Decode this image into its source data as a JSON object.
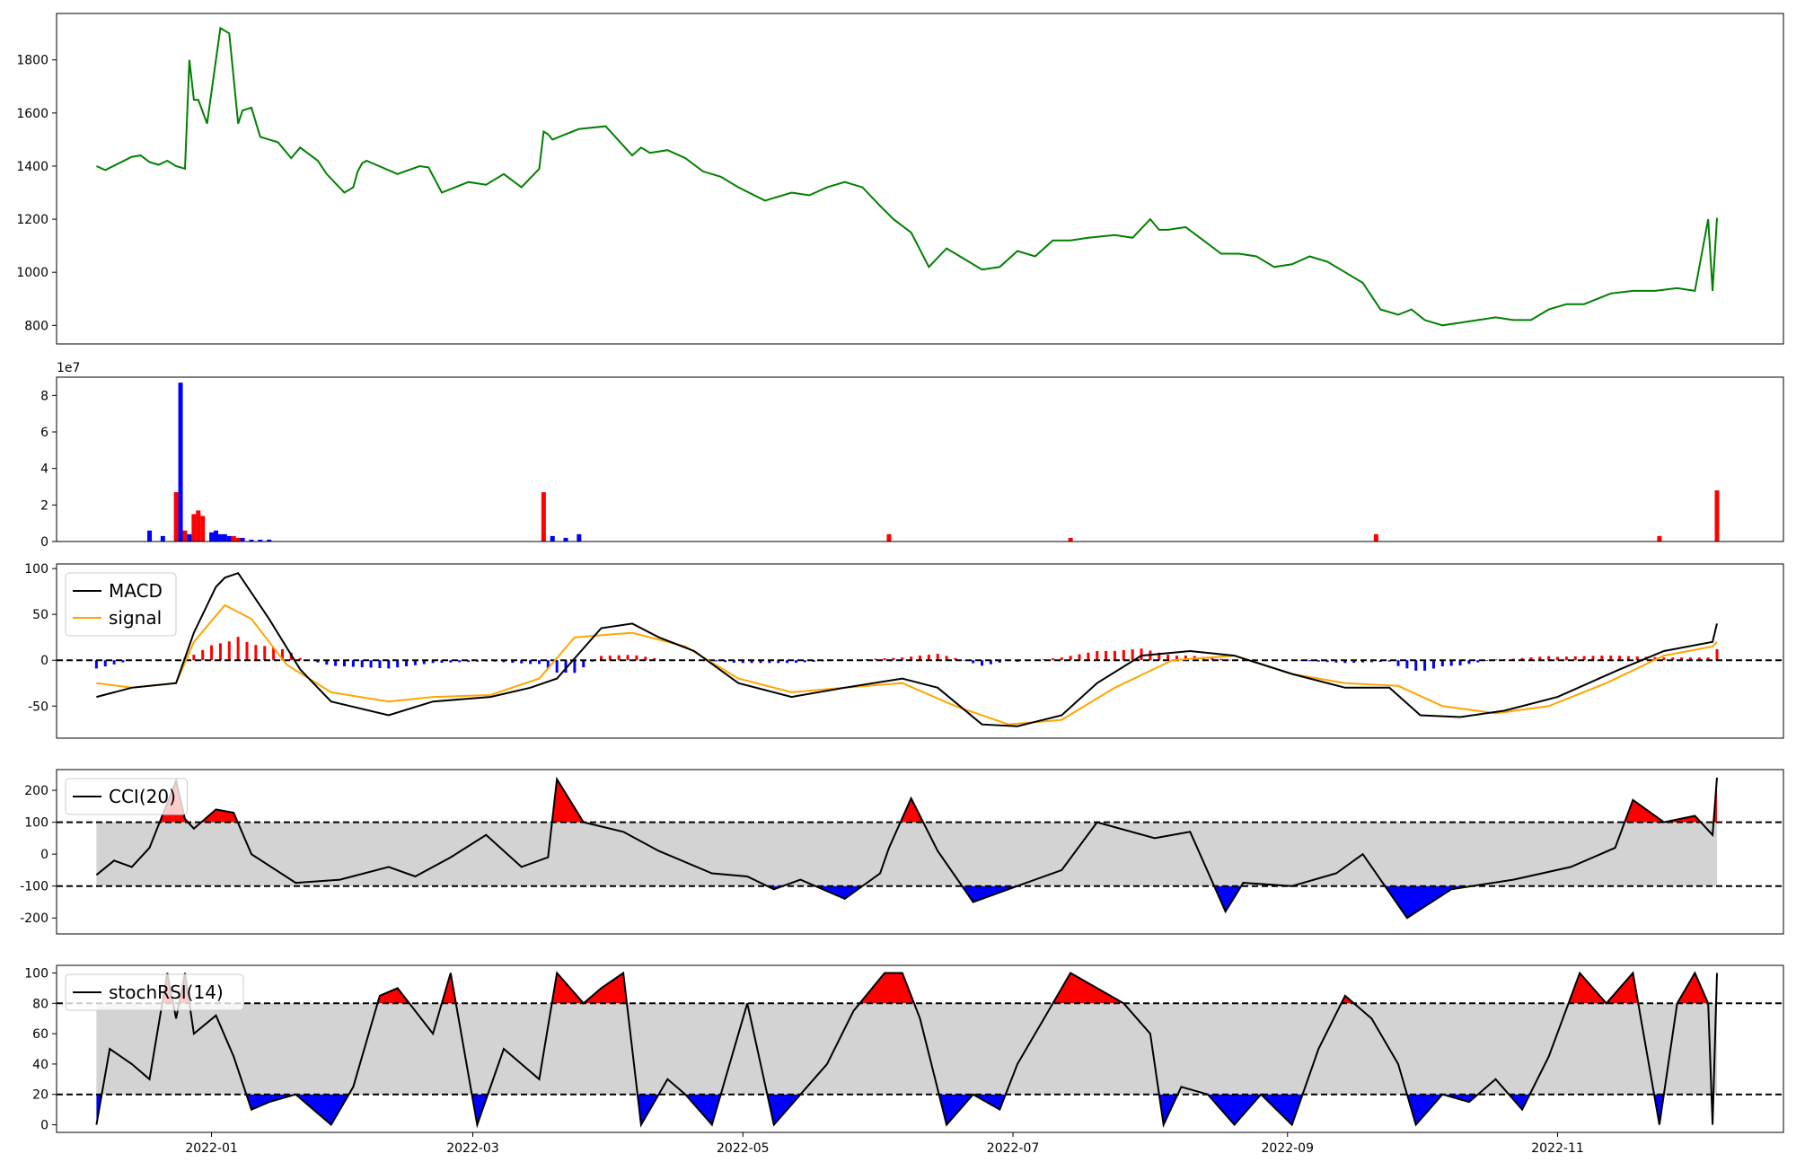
{
  "chart_data": [
    {
      "id": "price",
      "type": "line",
      "color": "#008000",
      "ylim": [
        730,
        1975
      ],
      "yticks": [
        800,
        1000,
        1200,
        1400,
        1600,
        1800
      ],
      "x": [
        "2021-12-06",
        "2021-12-08",
        "2021-12-14",
        "2021-12-16",
        "2021-12-18",
        "2021-12-20",
        "2021-12-22",
        "2021-12-24",
        "2021-12-26",
        "2021-12-27",
        "2021-12-28",
        "2021-12-29",
        "2021-12-31",
        "2022-01-03",
        "2022-01-05",
        "2022-01-07",
        "2022-01-08",
        "2022-01-10",
        "2022-01-12",
        "2022-01-14",
        "2022-01-16",
        "2022-01-19",
        "2022-01-21",
        "2022-01-25",
        "2022-01-27",
        "2022-01-31",
        "2022-02-02",
        "2022-02-03",
        "2022-02-04",
        "2022-02-05",
        "2022-02-12",
        "2022-02-17",
        "2022-02-19",
        "2022-02-22",
        "2022-02-25",
        "2022-02-28",
        "2022-03-04",
        "2022-03-08",
        "2022-03-12",
        "2022-03-16",
        "2022-03-17",
        "2022-03-18",
        "2022-03-19",
        "2022-03-25",
        "2022-03-31",
        "2022-04-06",
        "2022-04-08",
        "2022-04-10",
        "2022-04-14",
        "2022-04-18",
        "2022-04-22",
        "2022-04-26",
        "2022-04-30",
        "2022-05-06",
        "2022-05-12",
        "2022-05-16",
        "2022-05-20",
        "2022-05-24",
        "2022-05-28",
        "2022-06-01",
        "2022-06-04",
        "2022-06-08",
        "2022-06-12",
        "2022-06-16",
        "2022-06-20",
        "2022-06-24",
        "2022-06-28",
        "2022-07-02",
        "2022-07-06",
        "2022-07-10",
        "2022-07-14",
        "2022-07-18",
        "2022-07-24",
        "2022-07-28",
        "2022-08-01",
        "2022-08-03",
        "2022-08-05",
        "2022-08-09",
        "2022-08-13",
        "2022-08-17",
        "2022-08-21",
        "2022-08-25",
        "2022-08-29",
        "2022-09-02",
        "2022-09-06",
        "2022-09-10",
        "2022-09-14",
        "2022-09-18",
        "2022-09-22",
        "2022-09-26",
        "2022-09-29",
        "2022-10-02",
        "2022-10-06",
        "2022-10-10",
        "2022-10-14",
        "2022-10-18",
        "2022-10-22",
        "2022-10-26",
        "2022-10-30",
        "2022-11-03",
        "2022-11-07",
        "2022-11-13",
        "2022-11-18",
        "2022-11-23",
        "2022-11-28",
        "2022-12-02",
        "2022-12-05",
        "2022-12-06",
        "2022-12-07"
      ],
      "y": [
        1400,
        1385,
        1435,
        1440,
        1415,
        1405,
        1420,
        1400,
        1390,
        1800,
        1650,
        1650,
        1560,
        1920,
        1900,
        1560,
        1610,
        1620,
        1510,
        1500,
        1490,
        1430,
        1470,
        1420,
        1370,
        1300,
        1320,
        1380,
        1410,
        1420,
        1370,
        1400,
        1395,
        1300,
        1320,
        1340,
        1330,
        1370,
        1320,
        1390,
        1530,
        1520,
        1500,
        1540,
        1550,
        1440,
        1470,
        1450,
        1460,
        1430,
        1380,
        1360,
        1320,
        1270,
        1300,
        1290,
        1320,
        1340,
        1320,
        1250,
        1200,
        1150,
        1020,
        1090,
        1050,
        1010,
        1020,
        1080,
        1060,
        1120,
        1120,
        1130,
        1140,
        1130,
        1200,
        1160,
        1160,
        1170,
        1120,
        1070,
        1070,
        1060,
        1020,
        1030,
        1060,
        1040,
        1000,
        960,
        860,
        840,
        860,
        820,
        800,
        810,
        820,
        830,
        820,
        820,
        860,
        880,
        880,
        920,
        930,
        930,
        940,
        930,
        1200,
        930,
        1205
      ],
      "xdomain": [
        "2021-11-27",
        "2022-12-22"
      ]
    },
    {
      "id": "volume",
      "type": "bar",
      "offset_text": "1e7",
      "ylim": [
        0,
        9
      ],
      "yticks": [
        0,
        2,
        4,
        6,
        8
      ],
      "x": [
        "2021-12-18",
        "2021-12-21",
        "2021-12-24",
        "2021-12-25",
        "2021-12-26",
        "2021-12-27",
        "2021-12-28",
        "2021-12-29",
        "2021-12-30",
        "2022-01-01",
        "2022-01-02",
        "2022-01-03",
        "2022-01-04",
        "2022-01-05",
        "2022-01-06",
        "2022-01-07",
        "2022-01-08",
        "2022-01-10",
        "2022-01-12",
        "2022-01-14",
        "2022-03-17",
        "2022-03-19",
        "2022-03-22",
        "2022-03-25",
        "2022-06-03",
        "2022-07-14",
        "2022-09-21",
        "2022-11-24",
        "2022-12-07"
      ],
      "values": [
        0.6,
        0.3,
        2.7,
        8.7,
        0.6,
        0.4,
        1.5,
        1.7,
        1.4,
        0.5,
        0.6,
        0.4,
        0.4,
        0.3,
        0.3,
        0.2,
        0.2,
        0.1,
        0.1,
        0.1,
        2.7,
        0.3,
        0.2,
        0.4,
        0.4,
        0.2,
        0.4,
        0.3,
        2.8
      ],
      "colors": [
        "b",
        "b",
        "r",
        "b",
        "r",
        "b",
        "r",
        "r",
        "r",
        "b",
        "b",
        "b",
        "b",
        "b",
        "r",
        "r",
        "b",
        "b",
        "b",
        "b",
        "r",
        "b",
        "b",
        "b",
        "r",
        "r",
        "r",
        "r",
        "r"
      ],
      "xdomain": [
        "2021-11-27",
        "2022-12-22"
      ]
    },
    {
      "id": "macd",
      "type": "line",
      "ylim": [
        -85,
        105
      ],
      "yticks": [
        -50,
        0,
        50,
        100
      ],
      "legend": [
        "MACD",
        "signal"
      ],
      "series": [
        {
          "name": "MACD",
          "color": "#000000",
          "x": [
            "2021-12-06",
            "2021-12-14",
            "2021-12-24",
            "2021-12-28",
            "2022-01-02",
            "2022-01-04",
            "2022-01-07",
            "2022-01-14",
            "2022-01-21",
            "2022-01-28",
            "2022-02-10",
            "2022-02-20",
            "2022-03-05",
            "2022-03-14",
            "2022-03-20",
            "2022-03-30",
            "2022-04-06",
            "2022-04-12",
            "2022-04-20",
            "2022-04-30",
            "2022-05-12",
            "2022-05-24",
            "2022-06-06",
            "2022-06-14",
            "2022-06-24",
            "2022-07-02",
            "2022-07-12",
            "2022-07-20",
            "2022-07-30",
            "2022-08-10",
            "2022-08-20",
            "2022-09-02",
            "2022-09-14",
            "2022-09-24",
            "2022-10-01",
            "2022-10-10",
            "2022-10-20",
            "2022-11-01",
            "2022-11-15",
            "2022-11-25",
            "2022-12-06",
            "2022-12-07"
          ],
          "y": [
            -40,
            -30,
            -25,
            30,
            80,
            90,
            95,
            45,
            -10,
            -45,
            -60,
            -45,
            -40,
            -30,
            -20,
            35,
            40,
            25,
            10,
            -25,
            -40,
            -30,
            -20,
            -30,
            -70,
            -72,
            -60,
            -25,
            5,
            10,
            5,
            -15,
            -30,
            -30,
            -60,
            -62,
            -55,
            -40,
            -10,
            10,
            20,
            40
          ]
        },
        {
          "name": "signal",
          "color": "#ffa500",
          "x": [
            "2021-12-06",
            "2021-12-14",
            "2021-12-24",
            "2021-12-28",
            "2022-01-04",
            "2022-01-10",
            "2022-01-18",
            "2022-01-28",
            "2022-02-10",
            "2022-02-20",
            "2022-03-05",
            "2022-03-16",
            "2022-03-24",
            "2022-04-06",
            "2022-04-18",
            "2022-04-30",
            "2022-05-12",
            "2022-05-24",
            "2022-06-06",
            "2022-06-18",
            "2022-06-30",
            "2022-07-12",
            "2022-07-24",
            "2022-08-06",
            "2022-08-20",
            "2022-09-02",
            "2022-09-14",
            "2022-09-26",
            "2022-10-06",
            "2022-10-18",
            "2022-10-30",
            "2022-11-12",
            "2022-11-25",
            "2022-12-06",
            "2022-12-07"
          ],
          "y": [
            -25,
            -30,
            -25,
            20,
            60,
            45,
            -5,
            -35,
            -45,
            -40,
            -38,
            -20,
            25,
            30,
            15,
            -20,
            -35,
            -30,
            -25,
            -50,
            -70,
            -65,
            -30,
            0,
            5,
            -15,
            -25,
            -28,
            -50,
            -58,
            -50,
            -25,
            5,
            15,
            20
          ]
        }
      ],
      "xdomain": [
        "2021-11-27",
        "2022-12-22"
      ]
    },
    {
      "id": "cci",
      "type": "line",
      "ylim": [
        -250,
        265
      ],
      "yticks": [
        -200,
        -100,
        0,
        100,
        200
      ],
      "legend": [
        "CCI(20)"
      ],
      "bands": [
        -100,
        100
      ],
      "series": [
        {
          "name": "CCI(20)",
          "color": "#000000",
          "x": [
            "2021-12-06",
            "2021-12-10",
            "2021-12-14",
            "2021-12-18",
            "2021-12-24",
            "2021-12-26",
            "2021-12-28",
            "2022-01-02",
            "2022-01-06",
            "2022-01-10",
            "2022-01-20",
            "2022-01-30",
            "2022-02-10",
            "2022-02-16",
            "2022-02-24",
            "2022-03-04",
            "2022-03-12",
            "2022-03-18",
            "2022-03-20",
            "2022-03-26",
            "2022-04-04",
            "2022-04-12",
            "2022-04-24",
            "2022-05-02",
            "2022-05-08",
            "2022-05-14",
            "2022-05-24",
            "2022-06-01",
            "2022-06-03",
            "2022-06-08",
            "2022-06-14",
            "2022-06-22",
            "2022-07-04",
            "2022-07-12",
            "2022-07-20",
            "2022-08-02",
            "2022-08-10",
            "2022-08-18",
            "2022-08-22",
            "2022-09-02",
            "2022-09-12",
            "2022-09-18",
            "2022-09-28",
            "2022-10-08",
            "2022-10-22",
            "2022-11-04",
            "2022-11-14",
            "2022-11-18",
            "2022-11-25",
            "2022-12-02",
            "2022-12-06",
            "2022-12-07"
          ],
          "y": [
            -65,
            -20,
            -40,
            20,
            230,
            110,
            80,
            140,
            130,
            0,
            -90,
            -80,
            -40,
            -70,
            -10,
            60,
            -40,
            -10,
            235,
            100,
            70,
            10,
            -60,
            -70,
            -110,
            -80,
            -140,
            -60,
            20,
            175,
            10,
            -150,
            -90,
            -50,
            100,
            50,
            70,
            -180,
            -90,
            -100,
            -60,
            0,
            -200,
            -110,
            -80,
            -40,
            20,
            170,
            100,
            120,
            60,
            240
          ]
        }
      ],
      "xdomain": [
        "2021-11-27",
        "2022-12-22"
      ]
    },
    {
      "id": "stochrsi",
      "type": "line",
      "ylim": [
        -5,
        105
      ],
      "yticks": [
        0,
        20,
        40,
        60,
        80,
        100
      ],
      "legend": [
        "stochRSI(14)"
      ],
      "bands": [
        20,
        80
      ],
      "series": [
        {
          "name": "stochRSI(14)",
          "color": "#000000",
          "x": [
            "2021-12-06",
            "2021-12-09",
            "2021-12-14",
            "2021-12-18",
            "2021-12-22",
            "2021-12-24",
            "2021-12-26",
            "2021-12-28",
            "2022-01-02",
            "2022-01-06",
            "2022-01-10",
            "2022-01-14",
            "2022-01-20",
            "2022-01-24",
            "2022-01-28",
            "2022-02-02",
            "2022-02-08",
            "2022-02-12",
            "2022-02-20",
            "2022-02-24",
            "2022-03-02",
            "2022-03-08",
            "2022-03-12",
            "2022-03-16",
            "2022-03-20",
            "2022-03-26",
            "2022-03-30",
            "2022-04-04",
            "2022-04-08",
            "2022-04-14",
            "2022-04-18",
            "2022-04-24",
            "2022-05-02",
            "2022-05-08",
            "2022-05-14",
            "2022-05-20",
            "2022-05-26",
            "2022-06-02",
            "2022-06-06",
            "2022-06-10",
            "2022-06-16",
            "2022-06-22",
            "2022-06-28",
            "2022-07-02",
            "2022-07-08",
            "2022-07-14",
            "2022-07-20",
            "2022-07-26",
            "2022-08-01",
            "2022-08-04",
            "2022-08-08",
            "2022-08-14",
            "2022-08-20",
            "2022-08-26",
            "2022-09-02",
            "2022-09-08",
            "2022-09-14",
            "2022-09-20",
            "2022-09-26",
            "2022-09-30",
            "2022-10-06",
            "2022-10-12",
            "2022-10-18",
            "2022-10-24",
            "2022-10-30",
            "2022-11-06",
            "2022-11-12",
            "2022-11-18",
            "2022-11-24",
            "2022-11-28",
            "2022-12-02",
            "2022-12-05",
            "2022-12-06",
            "2022-12-07"
          ],
          "y": [
            0,
            50,
            40,
            30,
            100,
            70,
            100,
            60,
            72,
            45,
            10,
            15,
            20,
            10,
            0,
            25,
            85,
            90,
            60,
            100,
            0,
            50,
            40,
            30,
            100,
            80,
            90,
            100,
            0,
            30,
            20,
            0,
            80,
            0,
            20,
            40,
            75,
            100,
            100,
            70,
            0,
            20,
            10,
            40,
            70,
            100,
            90,
            80,
            60,
            0,
            25,
            20,
            0,
            20,
            0,
            50,
            85,
            70,
            40,
            0,
            20,
            15,
            30,
            10,
            45,
            100,
            80,
            100,
            0,
            80,
            100,
            80,
            0,
            100
          ]
        }
      ],
      "xdomain": [
        "2021-11-27",
        "2022-12-22"
      ]
    }
  ],
  "x_axis": {
    "tick_labels": [
      "2022-01",
      "2022-03",
      "2022-05",
      "2022-07",
      "2022-09",
      "2022-11"
    ]
  }
}
